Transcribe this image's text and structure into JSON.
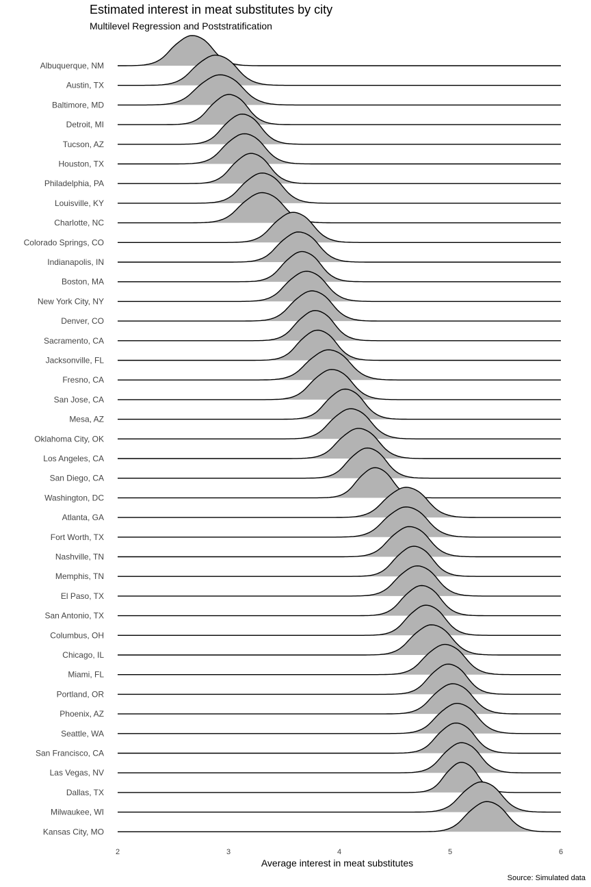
{
  "chart_data": {
    "type": "ridgeline",
    "title": "Estimated interest in meat substitutes by city",
    "subtitle": "Multilevel Regression and Poststratification",
    "xlabel": "Average interest in meat substitutes",
    "caption": "Source: Simulated data",
    "xlim": [
      2,
      6
    ],
    "xticks": [
      "2",
      "3",
      "4",
      "5",
      "6"
    ],
    "grid": false,
    "fill_color": "#b3b3b3",
    "line_color": "#000000",
    "cities": [
      {
        "name": "Albuquerque, NM",
        "center": 2.67,
        "sd": 0.16
      },
      {
        "name": "Austin, TX",
        "center": 2.88,
        "sd": 0.17
      },
      {
        "name": "Baltimore, MD",
        "center": 2.92,
        "sd": 0.18
      },
      {
        "name": "Detroit, MI",
        "center": 3.0,
        "sd": 0.15
      },
      {
        "name": "Tucson, AZ",
        "center": 3.12,
        "sd": 0.15
      },
      {
        "name": "Houston, TX",
        "center": 3.14,
        "sd": 0.16
      },
      {
        "name": "Philadelphia, PA",
        "center": 3.2,
        "sd": 0.15
      },
      {
        "name": "Louisville, KY",
        "center": 3.3,
        "sd": 0.16
      },
      {
        "name": "Charlotte, NC",
        "center": 3.3,
        "sd": 0.17
      },
      {
        "name": "Colorado Springs, CO",
        "center": 3.58,
        "sd": 0.16
      },
      {
        "name": "Indianapolis, IN",
        "center": 3.63,
        "sd": 0.16
      },
      {
        "name": "Boston, MA",
        "center": 3.66,
        "sd": 0.15
      },
      {
        "name": "New York City, NY",
        "center": 3.7,
        "sd": 0.16
      },
      {
        "name": "Denver, CO",
        "center": 3.75,
        "sd": 0.16
      },
      {
        "name": "Sacramento, CA",
        "center": 3.78,
        "sd": 0.15
      },
      {
        "name": "Jacksonville, FL",
        "center": 3.8,
        "sd": 0.15
      },
      {
        "name": "Fresno, CA",
        "center": 3.9,
        "sd": 0.17
      },
      {
        "name": "San Jose, CA",
        "center": 3.93,
        "sd": 0.16
      },
      {
        "name": "Mesa, AZ",
        "center": 4.05,
        "sd": 0.15
      },
      {
        "name": "Oklahoma City, OK",
        "center": 4.1,
        "sd": 0.16
      },
      {
        "name": "Los Angeles, CA",
        "center": 4.17,
        "sd": 0.16
      },
      {
        "name": "San Diego, CA",
        "center": 4.25,
        "sd": 0.15
      },
      {
        "name": "Washington, DC",
        "center": 4.32,
        "sd": 0.14
      },
      {
        "name": "Atlanta, GA",
        "center": 4.6,
        "sd": 0.17
      },
      {
        "name": "Fort Worth, TX",
        "center": 4.6,
        "sd": 0.17
      },
      {
        "name": "Nashville, TN",
        "center": 4.63,
        "sd": 0.16
      },
      {
        "name": "Memphis, TN",
        "center": 4.67,
        "sd": 0.15
      },
      {
        "name": "El Paso, TX",
        "center": 4.7,
        "sd": 0.16
      },
      {
        "name": "San Antonio, TX",
        "center": 4.74,
        "sd": 0.15
      },
      {
        "name": "Columbus, OH",
        "center": 4.78,
        "sd": 0.15
      },
      {
        "name": "Chicago, IL",
        "center": 4.83,
        "sd": 0.16
      },
      {
        "name": "Miami, FL",
        "center": 4.95,
        "sd": 0.16
      },
      {
        "name": "Portland, OR",
        "center": 4.98,
        "sd": 0.15
      },
      {
        "name": "Phoenix, AZ",
        "center": 5.02,
        "sd": 0.16
      },
      {
        "name": "Seattle, WA",
        "center": 5.06,
        "sd": 0.16
      },
      {
        "name": "San Francisco, CA",
        "center": 5.05,
        "sd": 0.15
      },
      {
        "name": "Las Vegas, NV",
        "center": 5.1,
        "sd": 0.15
      },
      {
        "name": "Dallas, TX",
        "center": 5.1,
        "sd": 0.13
      },
      {
        "name": "Milwaukee, WI",
        "center": 5.28,
        "sd": 0.16
      },
      {
        "name": "Kansas City, MO",
        "center": 5.33,
        "sd": 0.16
      }
    ]
  }
}
